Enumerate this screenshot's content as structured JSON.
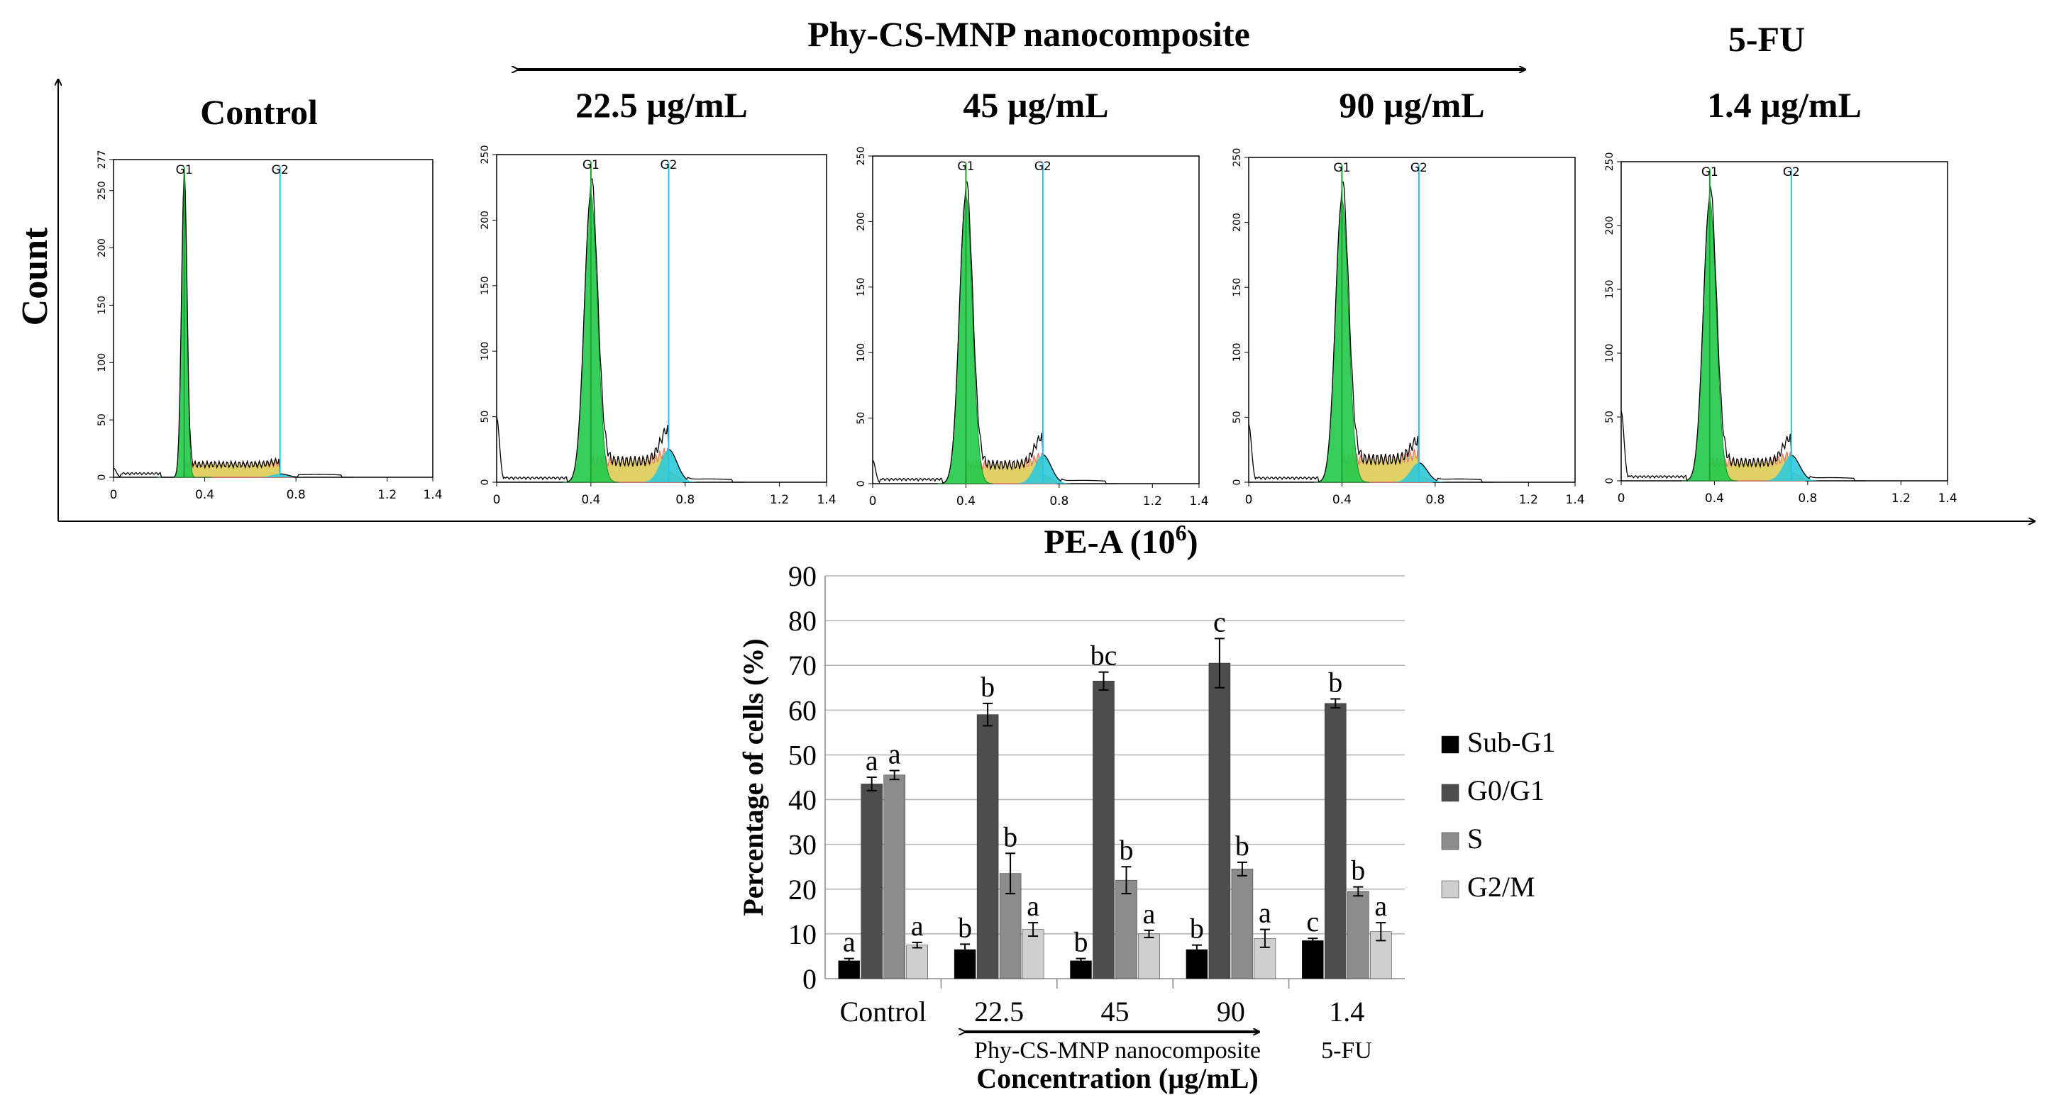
{
  "header": {
    "phy_title": "Phy-CS-MNP nanocomposite",
    "fu_title": "5-FU",
    "y_axis_label": "Count",
    "x_axis_label_base": "PE-A (10",
    "x_axis_label_exp": "6",
    "x_axis_label_close": ")"
  },
  "panels": [
    {
      "label": "Control",
      "ymax": 277,
      "yticks": [
        0,
        50,
        100,
        150,
        200,
        250,
        277
      ],
      "g1_label": "G1",
      "g2_label": "G2",
      "g1_pos": 0.31,
      "g2_pos": 0.73,
      "g1_height": 260,
      "g2_height": 3,
      "s_level": 14,
      "subg1_height": 8
    },
    {
      "label": "22.5 µg/mL",
      "ymax": 250,
      "yticks": [
        0,
        50,
        100,
        150,
        200,
        250
      ],
      "g1_label": "G1",
      "g2_label": "G2",
      "g1_pos": 0.4,
      "g2_pos": 0.73,
      "g1_height": 220,
      "g2_height": 25,
      "s_level": 20,
      "subg1_height": 50
    },
    {
      "label": "45 µg/mL",
      "ymax": 250,
      "yticks": [
        0,
        50,
        100,
        150,
        200,
        250
      ],
      "g1_label": "G1",
      "g2_label": "G2",
      "g1_pos": 0.4,
      "g2_pos": 0.73,
      "g1_height": 220,
      "g2_height": 22,
      "s_level": 18,
      "subg1_height": 18
    },
    {
      "label": "90 µg/mL",
      "ymax": 250,
      "yticks": [
        0,
        50,
        100,
        150,
        200,
        250
      ],
      "g1_label": "G1",
      "g2_label": "G2",
      "g1_pos": 0.4,
      "g2_pos": 0.73,
      "g1_height": 218,
      "g2_height": 15,
      "s_level": 22,
      "subg1_height": 45
    },
    {
      "label": "1.4 µg/mL",
      "ymax": 250,
      "yticks": [
        0,
        50,
        100,
        150,
        200,
        250
      ],
      "g1_label": "G1",
      "g2_label": "G2",
      "g1_pos": 0.38,
      "g2_pos": 0.73,
      "g1_height": 220,
      "g2_height": 20,
      "s_level": 18,
      "subg1_height": 55
    }
  ],
  "panel_xticks": [
    "0",
    "0.4",
    "0.8",
    "1.2",
    "1.4"
  ],
  "panel_xtick_values": [
    0,
    0.4,
    0.8,
    1.2,
    1.4
  ],
  "chart_data": {
    "type": "bar",
    "title": "",
    "ylabel": "Percentage of cells (%)",
    "xlabel": "Concentration (µg/mL)",
    "ylim": [
      0,
      90
    ],
    "yticks": [
      0,
      10,
      20,
      30,
      40,
      50,
      60,
      70,
      80,
      90
    ],
    "grid": true,
    "legend_position": "right",
    "categories": [
      "Control",
      "22.5",
      "45",
      "90",
      "1.4"
    ],
    "group_annotation": "Phy-CS-MNP nanocomposite",
    "fu_annotation": "5-FU",
    "series": [
      {
        "name": "Sub-G1",
        "color": "#000000",
        "values": [
          4,
          6.5,
          4,
          6.5,
          8.5
        ],
        "errors": [
          0.5,
          1.2,
          0.5,
          1.0,
          0.5
        ],
        "letters": [
          "a",
          "b",
          "b",
          "b",
          "c"
        ]
      },
      {
        "name": "G0/G1",
        "color": "#4d4d4d",
        "values": [
          43.5,
          59,
          66.5,
          70.5,
          61.5
        ],
        "errors": [
          1.5,
          2.5,
          2.0,
          5.5,
          1.0
        ],
        "letters": [
          "a",
          "b",
          "bc",
          "c",
          "b"
        ]
      },
      {
        "name": "S",
        "color": "#8c8c8c",
        "values": [
          45.5,
          23.5,
          22,
          24.5,
          19.5
        ],
        "errors": [
          1.0,
          4.5,
          3.0,
          1.5,
          1.0
        ],
        "letters": [
          "a",
          "b",
          "b",
          "b",
          "b"
        ]
      },
      {
        "name": "G2/M",
        "color": "#cfcfcf",
        "values": [
          7.5,
          11,
          10,
          9,
          10.5
        ],
        "errors": [
          0.6,
          1.5,
          0.8,
          2.0,
          2.0
        ],
        "letters": [
          "a",
          "a",
          "a",
          "a",
          "a"
        ]
      }
    ]
  }
}
